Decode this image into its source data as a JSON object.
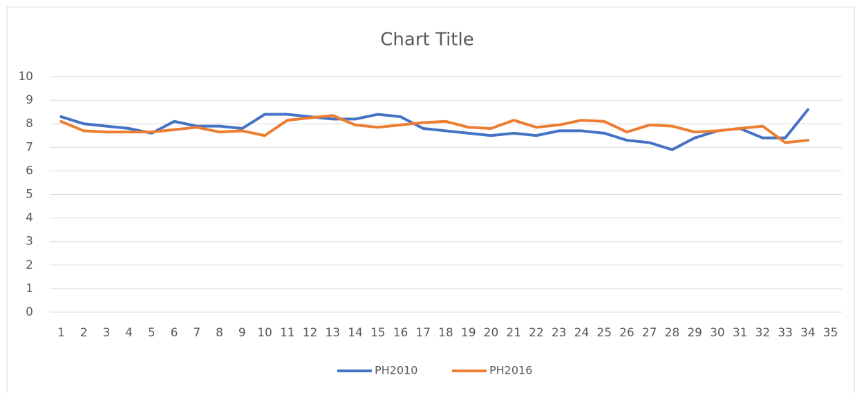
{
  "chart_data": {
    "type": "line",
    "title": "Chart Title",
    "categories": [
      1,
      2,
      3,
      4,
      5,
      6,
      7,
      8,
      9,
      10,
      11,
      12,
      13,
      14,
      15,
      16,
      17,
      18,
      19,
      20,
      21,
      22,
      23,
      24,
      25,
      26,
      27,
      28,
      29,
      30,
      31,
      32,
      33,
      34,
      35
    ],
    "series": [
      {
        "name": "PH2010",
        "color": "#4472c4",
        "values": [
          8.3,
          8.0,
          7.9,
          7.8,
          7.6,
          8.1,
          7.9,
          7.9,
          7.8,
          8.4,
          8.4,
          8.3,
          8.2,
          8.2,
          8.4,
          8.3,
          7.8,
          7.7,
          7.6,
          7.5,
          7.6,
          7.5,
          7.7,
          7.7,
          7.6,
          7.3,
          7.2,
          6.9,
          7.4,
          7.7,
          7.8,
          7.4,
          7.4,
          8.6,
          null
        ]
      },
      {
        "name": "PH2016",
        "color": "#ed7d31",
        "values": [
          8.1,
          7.7,
          7.65,
          7.65,
          7.65,
          7.75,
          7.85,
          7.65,
          7.7,
          7.5,
          8.15,
          8.25,
          8.35,
          7.95,
          7.85,
          7.95,
          8.05,
          8.1,
          7.85,
          7.8,
          8.15,
          7.85,
          7.95,
          8.15,
          8.1,
          7.65,
          7.95,
          7.9,
          7.65,
          7.7,
          7.8,
          7.9,
          7.2,
          7.3,
          null
        ]
      }
    ],
    "ylim": [
      0,
      10
    ],
    "yticks": [
      0,
      1,
      2,
      3,
      4,
      5,
      6,
      7,
      8,
      9,
      10
    ],
    "grid": true,
    "legend": "bottom"
  }
}
